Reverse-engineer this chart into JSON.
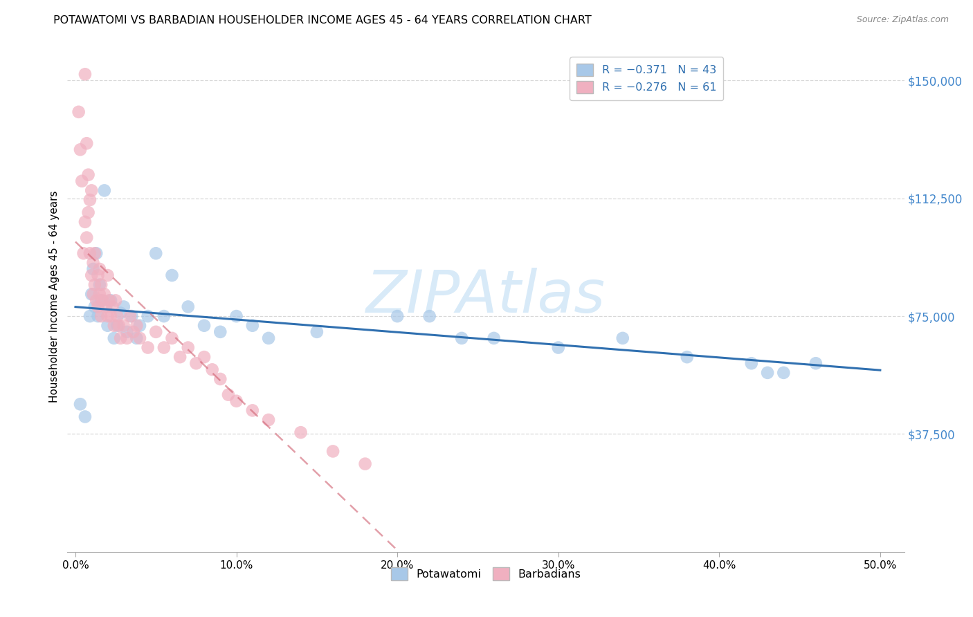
{
  "title": "POTAWATOMI VS BARBADIAN HOUSEHOLDER INCOME AGES 45 - 64 YEARS CORRELATION CHART",
  "source": "Source: ZipAtlas.com",
  "ylabel": "Householder Income Ages 45 - 64 years",
  "ytick_labels": [
    "$37,500",
    "$75,000",
    "$112,500",
    "$150,000"
  ],
  "ytick_vals": [
    37500,
    75000,
    112500,
    150000
  ],
  "xtick_labels": [
    "0.0%",
    "10.0%",
    "20.0%",
    "30.0%",
    "40.0%",
    "50.0%"
  ],
  "xtick_vals": [
    0.0,
    0.1,
    0.2,
    0.3,
    0.4,
    0.5
  ],
  "ylim": [
    0,
    162500
  ],
  "xlim": [
    -0.005,
    0.515
  ],
  "bottom_legend": [
    "Potawatomi",
    "Barbadians"
  ],
  "blue_scatter_color": "#a8c8e8",
  "pink_scatter_color": "#f0b0c0",
  "blue_line_color": "#3070b0",
  "pink_line_color": "#d06070",
  "legend_box_blue": "#a8c8e8",
  "legend_box_pink": "#f0b0c0",
  "watermark": "ZIPAtlas",
  "watermark_color": "#d8eaf8",
  "grid_color": "#d8d8d8",
  "ytick_color": "#4488cc",
  "title_fontsize": 11.5,
  "axis_fontsize": 11,
  "pot_seed": 7,
  "barb_seed": 13,
  "pot_x_raw": [
    0.003,
    0.006,
    0.009,
    0.01,
    0.011,
    0.012,
    0.013,
    0.014,
    0.015,
    0.016,
    0.018,
    0.02,
    0.022,
    0.024,
    0.026,
    0.028,
    0.03,
    0.032,
    0.035,
    0.038,
    0.04,
    0.045,
    0.05,
    0.055,
    0.06,
    0.07,
    0.08,
    0.09,
    0.1,
    0.11,
    0.12,
    0.15,
    0.2,
    0.22,
    0.24,
    0.26,
    0.3,
    0.34,
    0.38,
    0.42,
    0.44,
    0.46,
    0.43
  ],
  "pot_y_raw": [
    47000,
    43000,
    75000,
    82000,
    90000,
    78000,
    95000,
    75000,
    85000,
    80000,
    115000,
    72000,
    80000,
    68000,
    72000,
    76000,
    78000,
    70000,
    75000,
    68000,
    72000,
    75000,
    95000,
    75000,
    88000,
    78000,
    72000,
    70000,
    75000,
    72000,
    68000,
    70000,
    75000,
    75000,
    68000,
    68000,
    65000,
    68000,
    62000,
    60000,
    57000,
    60000,
    57000
  ],
  "barb_x_raw": [
    0.002,
    0.003,
    0.004,
    0.005,
    0.006,
    0.006,
    0.007,
    0.007,
    0.008,
    0.008,
    0.009,
    0.009,
    0.01,
    0.01,
    0.011,
    0.011,
    0.012,
    0.012,
    0.013,
    0.014,
    0.014,
    0.015,
    0.015,
    0.016,
    0.016,
    0.017,
    0.018,
    0.019,
    0.02,
    0.02,
    0.021,
    0.022,
    0.023,
    0.024,
    0.025,
    0.026,
    0.027,
    0.028,
    0.03,
    0.032,
    0.034,
    0.036,
    0.038,
    0.04,
    0.045,
    0.05,
    0.055,
    0.06,
    0.065,
    0.07,
    0.075,
    0.08,
    0.085,
    0.09,
    0.095,
    0.1,
    0.11,
    0.12,
    0.14,
    0.16,
    0.18
  ],
  "barb_y_raw": [
    140000,
    128000,
    118000,
    95000,
    152000,
    105000,
    130000,
    100000,
    120000,
    108000,
    95000,
    112000,
    88000,
    115000,
    92000,
    82000,
    85000,
    95000,
    80000,
    88000,
    78000,
    82000,
    90000,
    85000,
    75000,
    80000,
    82000,
    78000,
    88000,
    75000,
    80000,
    75000,
    78000,
    72000,
    80000,
    75000,
    72000,
    68000,
    72000,
    68000,
    75000,
    70000,
    72000,
    68000,
    65000,
    70000,
    65000,
    68000,
    62000,
    65000,
    60000,
    62000,
    58000,
    55000,
    50000,
    48000,
    45000,
    42000,
    38000,
    32000,
    28000
  ]
}
